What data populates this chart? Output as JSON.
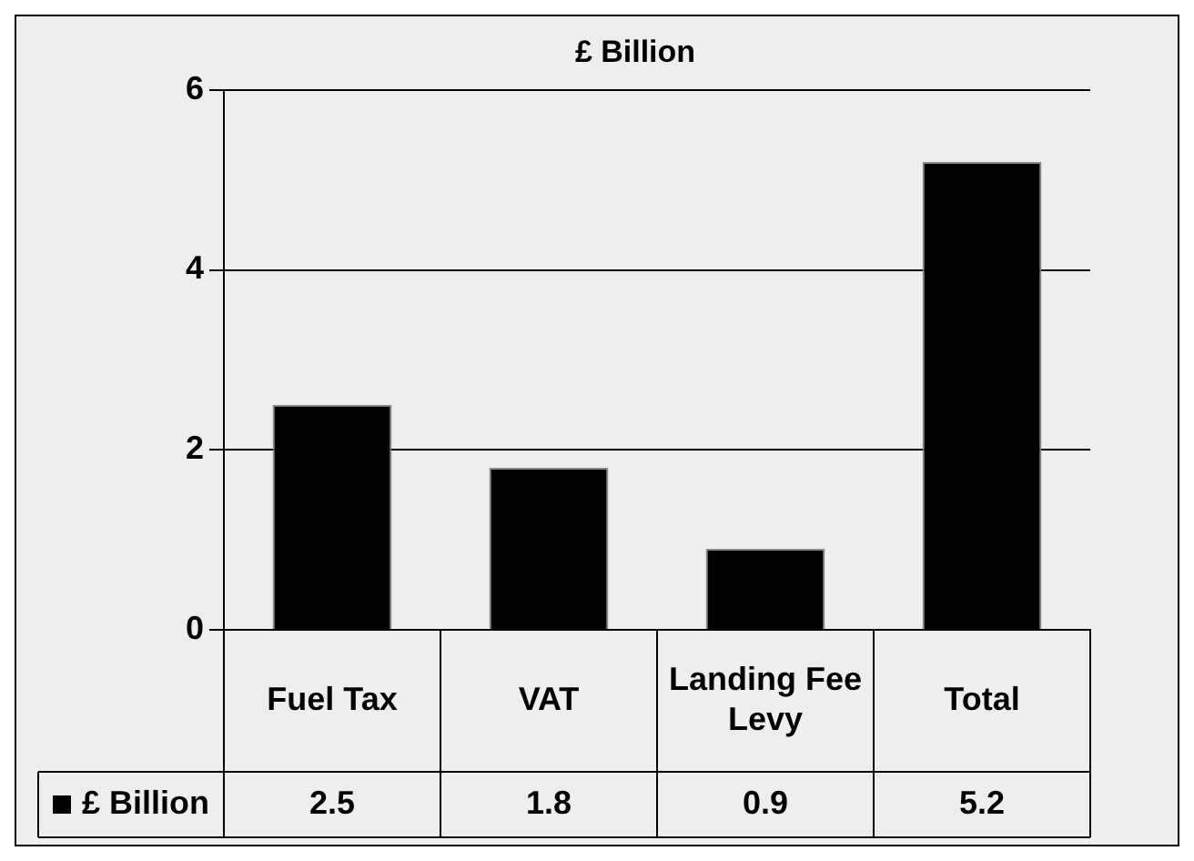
{
  "chart_data": {
    "type": "bar",
    "title": "£ Billion",
    "categories": [
      "Fuel Tax",
      "VAT",
      "Landing Fee Levy",
      "Total"
    ],
    "series": [
      {
        "name": "£ Billion",
        "color": "#000000",
        "values": [
          2.5,
          1.8,
          0.9,
          5.2
        ]
      }
    ],
    "ylim": [
      0,
      6
    ],
    "yticks": [
      0,
      2,
      4,
      6
    ],
    "grid": "y",
    "legend": "bottom left",
    "data_labels": true
  }
}
